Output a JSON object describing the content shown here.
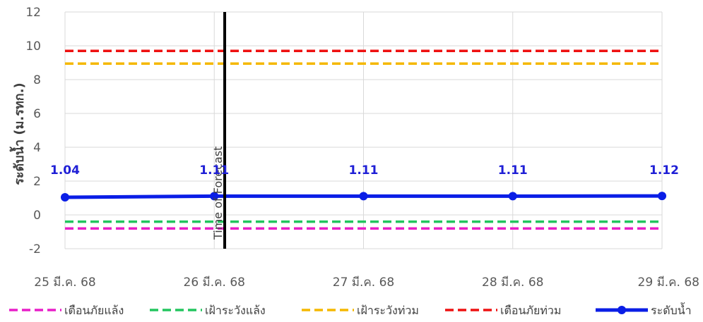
{
  "chart_data": {
    "type": "line",
    "title": "",
    "xlabel": "",
    "ylabel": "ระดับน้ำ (ม.รทก.)",
    "ylim": [
      -2,
      12
    ],
    "yticks": [
      -2,
      0,
      2,
      4,
      6,
      8,
      10,
      12
    ],
    "grid": true,
    "categories": [
      "25 มี.ค. 68",
      "26 มี.ค. 68",
      "27 มี.ค. 68",
      "28 มี.ค. 68",
      "29 มี.ค. 68"
    ],
    "series": [
      {
        "name": "เตือนภัยแล้ง",
        "style": "dashed",
        "color": "#e81ec8",
        "values": [
          -0.8,
          -0.8,
          -0.8,
          -0.8,
          -0.8
        ]
      },
      {
        "name": "เฝ้าระวังแล้ง",
        "style": "dashed",
        "color": "#22c55e",
        "values": [
          -0.4,
          -0.4,
          -0.4,
          -0.4,
          -0.4
        ]
      },
      {
        "name": "เฝ้าระวังท่วม",
        "style": "dashed",
        "color": "#f5b800",
        "values": [
          8.95,
          8.95,
          8.95,
          8.95,
          8.95
        ]
      },
      {
        "name": "เตือนภัยท่วม",
        "style": "dashed",
        "color": "#ee1111",
        "values": [
          9.7,
          9.7,
          9.7,
          9.7,
          9.7
        ]
      },
      {
        "name": "ระดับน้ำ",
        "style": "solid-markers",
        "color": "#0a1ee6",
        "values": [
          1.04,
          1.11,
          1.11,
          1.11,
          1.12
        ],
        "data_labels": [
          "1.04",
          "1.11",
          "1.11",
          "1.11",
          "1.12"
        ]
      }
    ],
    "annotation": {
      "label": "Time of Forecast",
      "x_position": 1.07,
      "color": "#000000"
    },
    "legend_position": "bottom"
  }
}
